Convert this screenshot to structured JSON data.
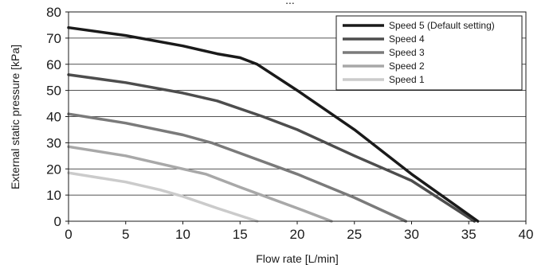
{
  "chart_data": {
    "type": "line",
    "title_partial": "...",
    "xlabel": "Flow rate [L/min]",
    "ylabel": "External static pressure [kPa]",
    "xlim": [
      0,
      40
    ],
    "ylim": [
      0,
      80
    ],
    "xticks": [
      0,
      5,
      10,
      15,
      20,
      25,
      30,
      35,
      40
    ],
    "yticks": [
      0,
      10,
      20,
      30,
      40,
      50,
      60,
      70,
      80
    ],
    "grid": "horizontal",
    "legend_position": "top-right",
    "series": [
      {
        "name": "Speed 5 (Default setting)",
        "color": "#1a1a1a",
        "points": [
          [
            0,
            74
          ],
          [
            5,
            71
          ],
          [
            10,
            67
          ],
          [
            13,
            64
          ],
          [
            15,
            62.5
          ],
          [
            16.5,
            60
          ],
          [
            20,
            50
          ],
          [
            25,
            35
          ],
          [
            30,
            18
          ],
          [
            35.8,
            0
          ]
        ]
      },
      {
        "name": "Speed 4",
        "color": "#4d4d4d",
        "points": [
          [
            0,
            56
          ],
          [
            5,
            53
          ],
          [
            10,
            49
          ],
          [
            13,
            46
          ],
          [
            17,
            40
          ],
          [
            20,
            35
          ],
          [
            25,
            25
          ],
          [
            30,
            15.5
          ],
          [
            35.5,
            0
          ]
        ]
      },
      {
        "name": "Speed 3",
        "color": "#7a7a7a",
        "points": [
          [
            0,
            41
          ],
          [
            5,
            37.5
          ],
          [
            10,
            33
          ],
          [
            12.5,
            30
          ],
          [
            15,
            26
          ],
          [
            20,
            18
          ],
          [
            25,
            9
          ],
          [
            29.5,
            0
          ]
        ]
      },
      {
        "name": "Speed 2",
        "color": "#a8a8a8",
        "points": [
          [
            0,
            28.5
          ],
          [
            5,
            25
          ],
          [
            10,
            20
          ],
          [
            12,
            18
          ],
          [
            15,
            13
          ],
          [
            20,
            5
          ],
          [
            23,
            0
          ]
        ]
      },
      {
        "name": "Speed 1",
        "color": "#cbcbcb",
        "points": [
          [
            0,
            18.5
          ],
          [
            5,
            15
          ],
          [
            8,
            12
          ],
          [
            10,
            9.5
          ],
          [
            13,
            5
          ],
          [
            16.5,
            0
          ]
        ]
      }
    ]
  }
}
